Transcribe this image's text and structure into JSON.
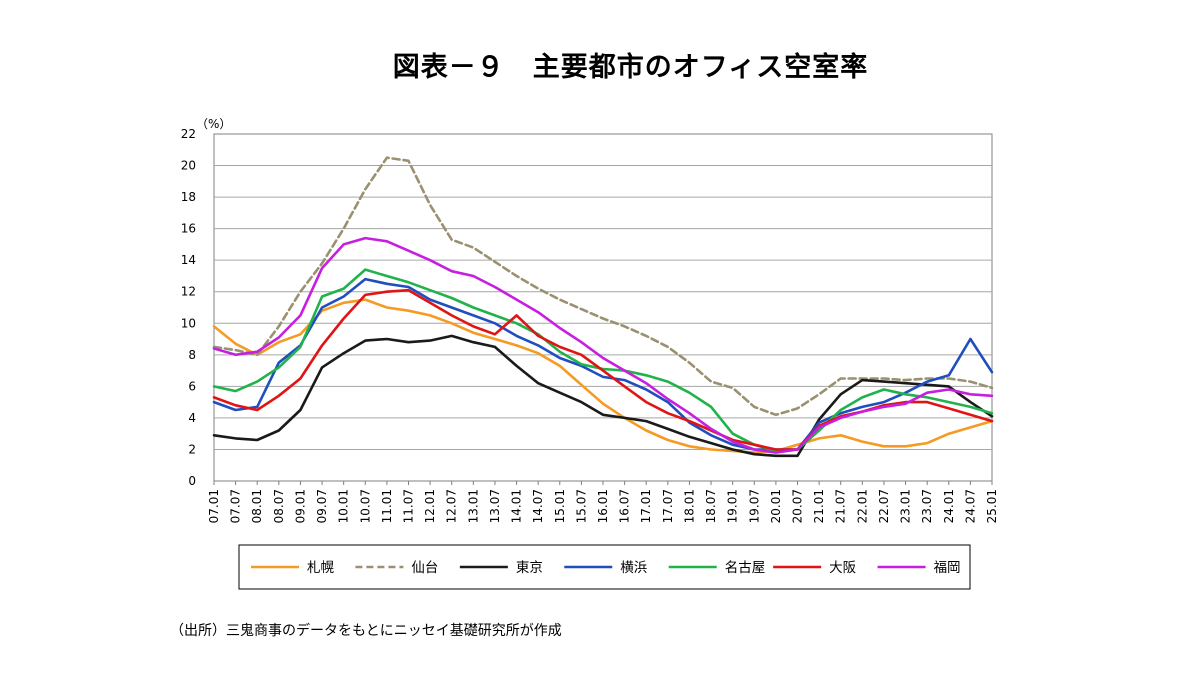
{
  "figure": {
    "title": "図表－９　主要都市のオフィス空室率",
    "source": "（出所）三鬼商事のデータをもとにニッセイ基礎研究所が作成"
  },
  "chart_data": {
    "type": "line",
    "title": "図表－９　主要都市のオフィス空室率",
    "ylabel": "（%）",
    "xlabel": "",
    "ylim": [
      0,
      22
    ],
    "yticks": [
      "0",
      "2",
      "4",
      "6",
      "8",
      "10",
      "12",
      "14",
      "16",
      "18",
      "20",
      "22"
    ],
    "xticks": [
      "07.01",
      "07.07",
      "08.01",
      "08.07",
      "09.01",
      "09.07",
      "10.01",
      "10.07",
      "11.01",
      "11.07",
      "12.01",
      "12.07",
      "13.01",
      "13.07",
      "14.01",
      "14.07",
      "15.01",
      "15.07",
      "16.01",
      "16.07",
      "17.01",
      "17.07",
      "18.01",
      "18.07",
      "19.01",
      "19.07",
      "20.01",
      "20.07",
      "21.01",
      "21.07",
      "22.01",
      "22.07",
      "23.01",
      "23.07",
      "24.01",
      "24.07",
      "25.01"
    ],
    "grid": "horizontal",
    "legend_position": "bottom",
    "series": [
      {
        "name": "札幌",
        "color": "#f59a23",
        "style": "solid",
        "points": [
          [
            0,
            9.8
          ],
          [
            1,
            8.7
          ],
          [
            2,
            8.0
          ],
          [
            3,
            8.8
          ],
          [
            4,
            9.3
          ],
          [
            5,
            10.8
          ],
          [
            6,
            11.3
          ],
          [
            7,
            11.5
          ],
          [
            8,
            11.0
          ],
          [
            9,
            10.8
          ],
          [
            10,
            10.5
          ],
          [
            11,
            10.0
          ],
          [
            12,
            9.4
          ],
          [
            13,
            9.0
          ],
          [
            14,
            8.6
          ],
          [
            15,
            8.1
          ],
          [
            16,
            7.3
          ],
          [
            17,
            6.1
          ],
          [
            18,
            4.9
          ],
          [
            19,
            4.0
          ],
          [
            20,
            3.2
          ],
          [
            21,
            2.6
          ],
          [
            22,
            2.2
          ],
          [
            23,
            2.0
          ],
          [
            24,
            1.9
          ],
          [
            25,
            1.8
          ],
          [
            26,
            1.9
          ],
          [
            27,
            2.3
          ],
          [
            28,
            2.7
          ],
          [
            29,
            2.9
          ],
          [
            30,
            2.5
          ],
          [
            31,
            2.2
          ],
          [
            32,
            2.2
          ],
          [
            33,
            2.4
          ],
          [
            34,
            3.0
          ],
          [
            35,
            3.4
          ],
          [
            36,
            3.8
          ]
        ]
      },
      {
        "name": "仙台",
        "color": "#9a9171",
        "style": "dashed",
        "points": [
          [
            0,
            8.5
          ],
          [
            1,
            8.3
          ],
          [
            2,
            8.0
          ],
          [
            3,
            9.8
          ],
          [
            4,
            12.0
          ],
          [
            5,
            13.8
          ],
          [
            6,
            16.0
          ],
          [
            7,
            18.5
          ],
          [
            8,
            20.5
          ],
          [
            9,
            20.3
          ],
          [
            10,
            17.5
          ],
          [
            11,
            15.3
          ],
          [
            12,
            14.8
          ],
          [
            13,
            13.9
          ],
          [
            14,
            13.0
          ],
          [
            15,
            12.2
          ],
          [
            16,
            11.5
          ],
          [
            17,
            10.9
          ],
          [
            18,
            10.3
          ],
          [
            19,
            9.8
          ],
          [
            20,
            9.2
          ],
          [
            21,
            8.5
          ],
          [
            22,
            7.5
          ],
          [
            23,
            6.3
          ],
          [
            24,
            5.9
          ],
          [
            25,
            4.7
          ],
          [
            26,
            4.2
          ],
          [
            27,
            4.6
          ],
          [
            28,
            5.5
          ],
          [
            29,
            6.5
          ],
          [
            30,
            6.5
          ],
          [
            31,
            6.5
          ],
          [
            32,
            6.4
          ],
          [
            33,
            6.5
          ],
          [
            34,
            6.5
          ],
          [
            35,
            6.3
          ],
          [
            36,
            5.9
          ]
        ]
      },
      {
        "name": "東京",
        "color": "#1a1a1a",
        "style": "solid",
        "points": [
          [
            0,
            2.9
          ],
          [
            1,
            2.7
          ],
          [
            2,
            2.6
          ],
          [
            3,
            3.2
          ],
          [
            4,
            4.5
          ],
          [
            5,
            7.2
          ],
          [
            6,
            8.1
          ],
          [
            7,
            8.9
          ],
          [
            8,
            9.0
          ],
          [
            9,
            8.8
          ],
          [
            10,
            8.9
          ],
          [
            11,
            9.2
          ],
          [
            12,
            8.8
          ],
          [
            13,
            8.5
          ],
          [
            14,
            7.3
          ],
          [
            15,
            6.2
          ],
          [
            16,
            5.6
          ],
          [
            17,
            5.0
          ],
          [
            18,
            4.2
          ],
          [
            19,
            4.0
          ],
          [
            20,
            3.8
          ],
          [
            21,
            3.3
          ],
          [
            22,
            2.8
          ],
          [
            23,
            2.4
          ],
          [
            24,
            2.0
          ],
          [
            25,
            1.7
          ],
          [
            26,
            1.6
          ],
          [
            27,
            1.6
          ],
          [
            28,
            3.9
          ],
          [
            29,
            5.5
          ],
          [
            30,
            6.4
          ],
          [
            31,
            6.3
          ],
          [
            32,
            6.2
          ],
          [
            33,
            6.1
          ],
          [
            34,
            6.0
          ],
          [
            35,
            5.0
          ],
          [
            36,
            4.1
          ]
        ]
      },
      {
        "name": "横浜",
        "color": "#1f4fbf",
        "style": "solid",
        "points": [
          [
            0,
            5.0
          ],
          [
            1,
            4.5
          ],
          [
            2,
            4.7
          ],
          [
            3,
            7.5
          ],
          [
            4,
            8.6
          ],
          [
            5,
            11.0
          ],
          [
            6,
            11.7
          ],
          [
            7,
            12.8
          ],
          [
            8,
            12.5
          ],
          [
            9,
            12.3
          ],
          [
            10,
            11.5
          ],
          [
            11,
            11.0
          ],
          [
            12,
            10.5
          ],
          [
            13,
            10.0
          ],
          [
            14,
            9.2
          ],
          [
            15,
            8.6
          ],
          [
            16,
            7.8
          ],
          [
            17,
            7.3
          ],
          [
            18,
            6.6
          ],
          [
            19,
            6.4
          ],
          [
            20,
            5.8
          ],
          [
            21,
            5.0
          ],
          [
            22,
            3.7
          ],
          [
            23,
            2.9
          ],
          [
            24,
            2.3
          ],
          [
            25,
            2.0
          ],
          [
            26,
            2.0
          ],
          [
            27,
            2.0
          ],
          [
            28,
            3.7
          ],
          [
            29,
            4.3
          ],
          [
            30,
            4.7
          ],
          [
            31,
            5.0
          ],
          [
            32,
            5.6
          ],
          [
            33,
            6.3
          ],
          [
            34,
            6.7
          ],
          [
            35,
            9.0
          ],
          [
            36,
            6.9
          ]
        ]
      },
      {
        "name": "名古屋",
        "color": "#22b24c",
        "style": "solid",
        "points": [
          [
            0,
            6.0
          ],
          [
            1,
            5.7
          ],
          [
            2,
            6.3
          ],
          [
            3,
            7.2
          ],
          [
            4,
            8.5
          ],
          [
            5,
            11.7
          ],
          [
            6,
            12.2
          ],
          [
            7,
            13.4
          ],
          [
            8,
            13.0
          ],
          [
            9,
            12.6
          ],
          [
            10,
            12.1
          ],
          [
            11,
            11.6
          ],
          [
            12,
            11.0
          ],
          [
            13,
            10.5
          ],
          [
            14,
            10.0
          ],
          [
            15,
            9.3
          ],
          [
            16,
            8.2
          ],
          [
            17,
            7.4
          ],
          [
            18,
            7.1
          ],
          [
            19,
            7.0
          ],
          [
            20,
            6.7
          ],
          [
            21,
            6.3
          ],
          [
            22,
            5.6
          ],
          [
            23,
            4.7
          ],
          [
            24,
            3.0
          ],
          [
            25,
            2.3
          ],
          [
            26,
            1.9
          ],
          [
            27,
            2.0
          ],
          [
            28,
            3.2
          ],
          [
            29,
            4.5
          ],
          [
            30,
            5.3
          ],
          [
            31,
            5.8
          ],
          [
            32,
            5.5
          ],
          [
            33,
            5.3
          ],
          [
            34,
            5.0
          ],
          [
            35,
            4.7
          ],
          [
            36,
            4.3
          ]
        ]
      },
      {
        "name": "大阪",
        "color": "#e01414",
        "style": "solid",
        "points": [
          [
            0,
            5.3
          ],
          [
            1,
            4.8
          ],
          [
            2,
            4.5
          ],
          [
            3,
            5.4
          ],
          [
            4,
            6.5
          ],
          [
            5,
            8.6
          ],
          [
            6,
            10.3
          ],
          [
            7,
            11.8
          ],
          [
            8,
            12.0
          ],
          [
            9,
            12.1
          ],
          [
            10,
            11.3
          ],
          [
            11,
            10.5
          ],
          [
            12,
            9.8
          ],
          [
            13,
            9.3
          ],
          [
            14,
            10.5
          ],
          [
            15,
            9.2
          ],
          [
            16,
            8.5
          ],
          [
            17,
            8.0
          ],
          [
            18,
            7.0
          ],
          [
            19,
            6.0
          ],
          [
            20,
            5.0
          ],
          [
            21,
            4.3
          ],
          [
            22,
            3.8
          ],
          [
            23,
            3.2
          ],
          [
            24,
            2.6
          ],
          [
            25,
            2.3
          ],
          [
            26,
            2.0
          ],
          [
            27,
            2.0
          ],
          [
            28,
            3.5
          ],
          [
            29,
            4.1
          ],
          [
            30,
            4.4
          ],
          [
            31,
            4.8
          ],
          [
            32,
            5.0
          ],
          [
            33,
            5.0
          ],
          [
            34,
            4.6
          ],
          [
            35,
            4.2
          ],
          [
            36,
            3.8
          ]
        ]
      },
      {
        "name": "福岡",
        "color": "#c71fe0",
        "style": "solid",
        "points": [
          [
            0,
            8.4
          ],
          [
            1,
            8.0
          ],
          [
            2,
            8.2
          ],
          [
            3,
            9.1
          ],
          [
            4,
            10.5
          ],
          [
            5,
            13.5
          ],
          [
            6,
            15.0
          ],
          [
            7,
            15.4
          ],
          [
            8,
            15.2
          ],
          [
            9,
            14.6
          ],
          [
            10,
            14.0
          ],
          [
            11,
            13.3
          ],
          [
            12,
            13.0
          ],
          [
            13,
            12.3
          ],
          [
            14,
            11.5
          ],
          [
            15,
            10.7
          ],
          [
            16,
            9.7
          ],
          [
            17,
            8.8
          ],
          [
            18,
            7.8
          ],
          [
            19,
            7.0
          ],
          [
            20,
            6.2
          ],
          [
            21,
            5.2
          ],
          [
            22,
            4.3
          ],
          [
            23,
            3.3
          ],
          [
            24,
            2.5
          ],
          [
            25,
            2.0
          ],
          [
            26,
            1.8
          ],
          [
            27,
            2.0
          ],
          [
            28,
            3.4
          ],
          [
            29,
            4.0
          ],
          [
            30,
            4.4
          ],
          [
            31,
            4.7
          ],
          [
            32,
            4.9
          ],
          [
            33,
            5.6
          ],
          [
            34,
            5.8
          ],
          [
            35,
            5.5
          ],
          [
            36,
            5.4
          ]
        ]
      }
    ]
  }
}
